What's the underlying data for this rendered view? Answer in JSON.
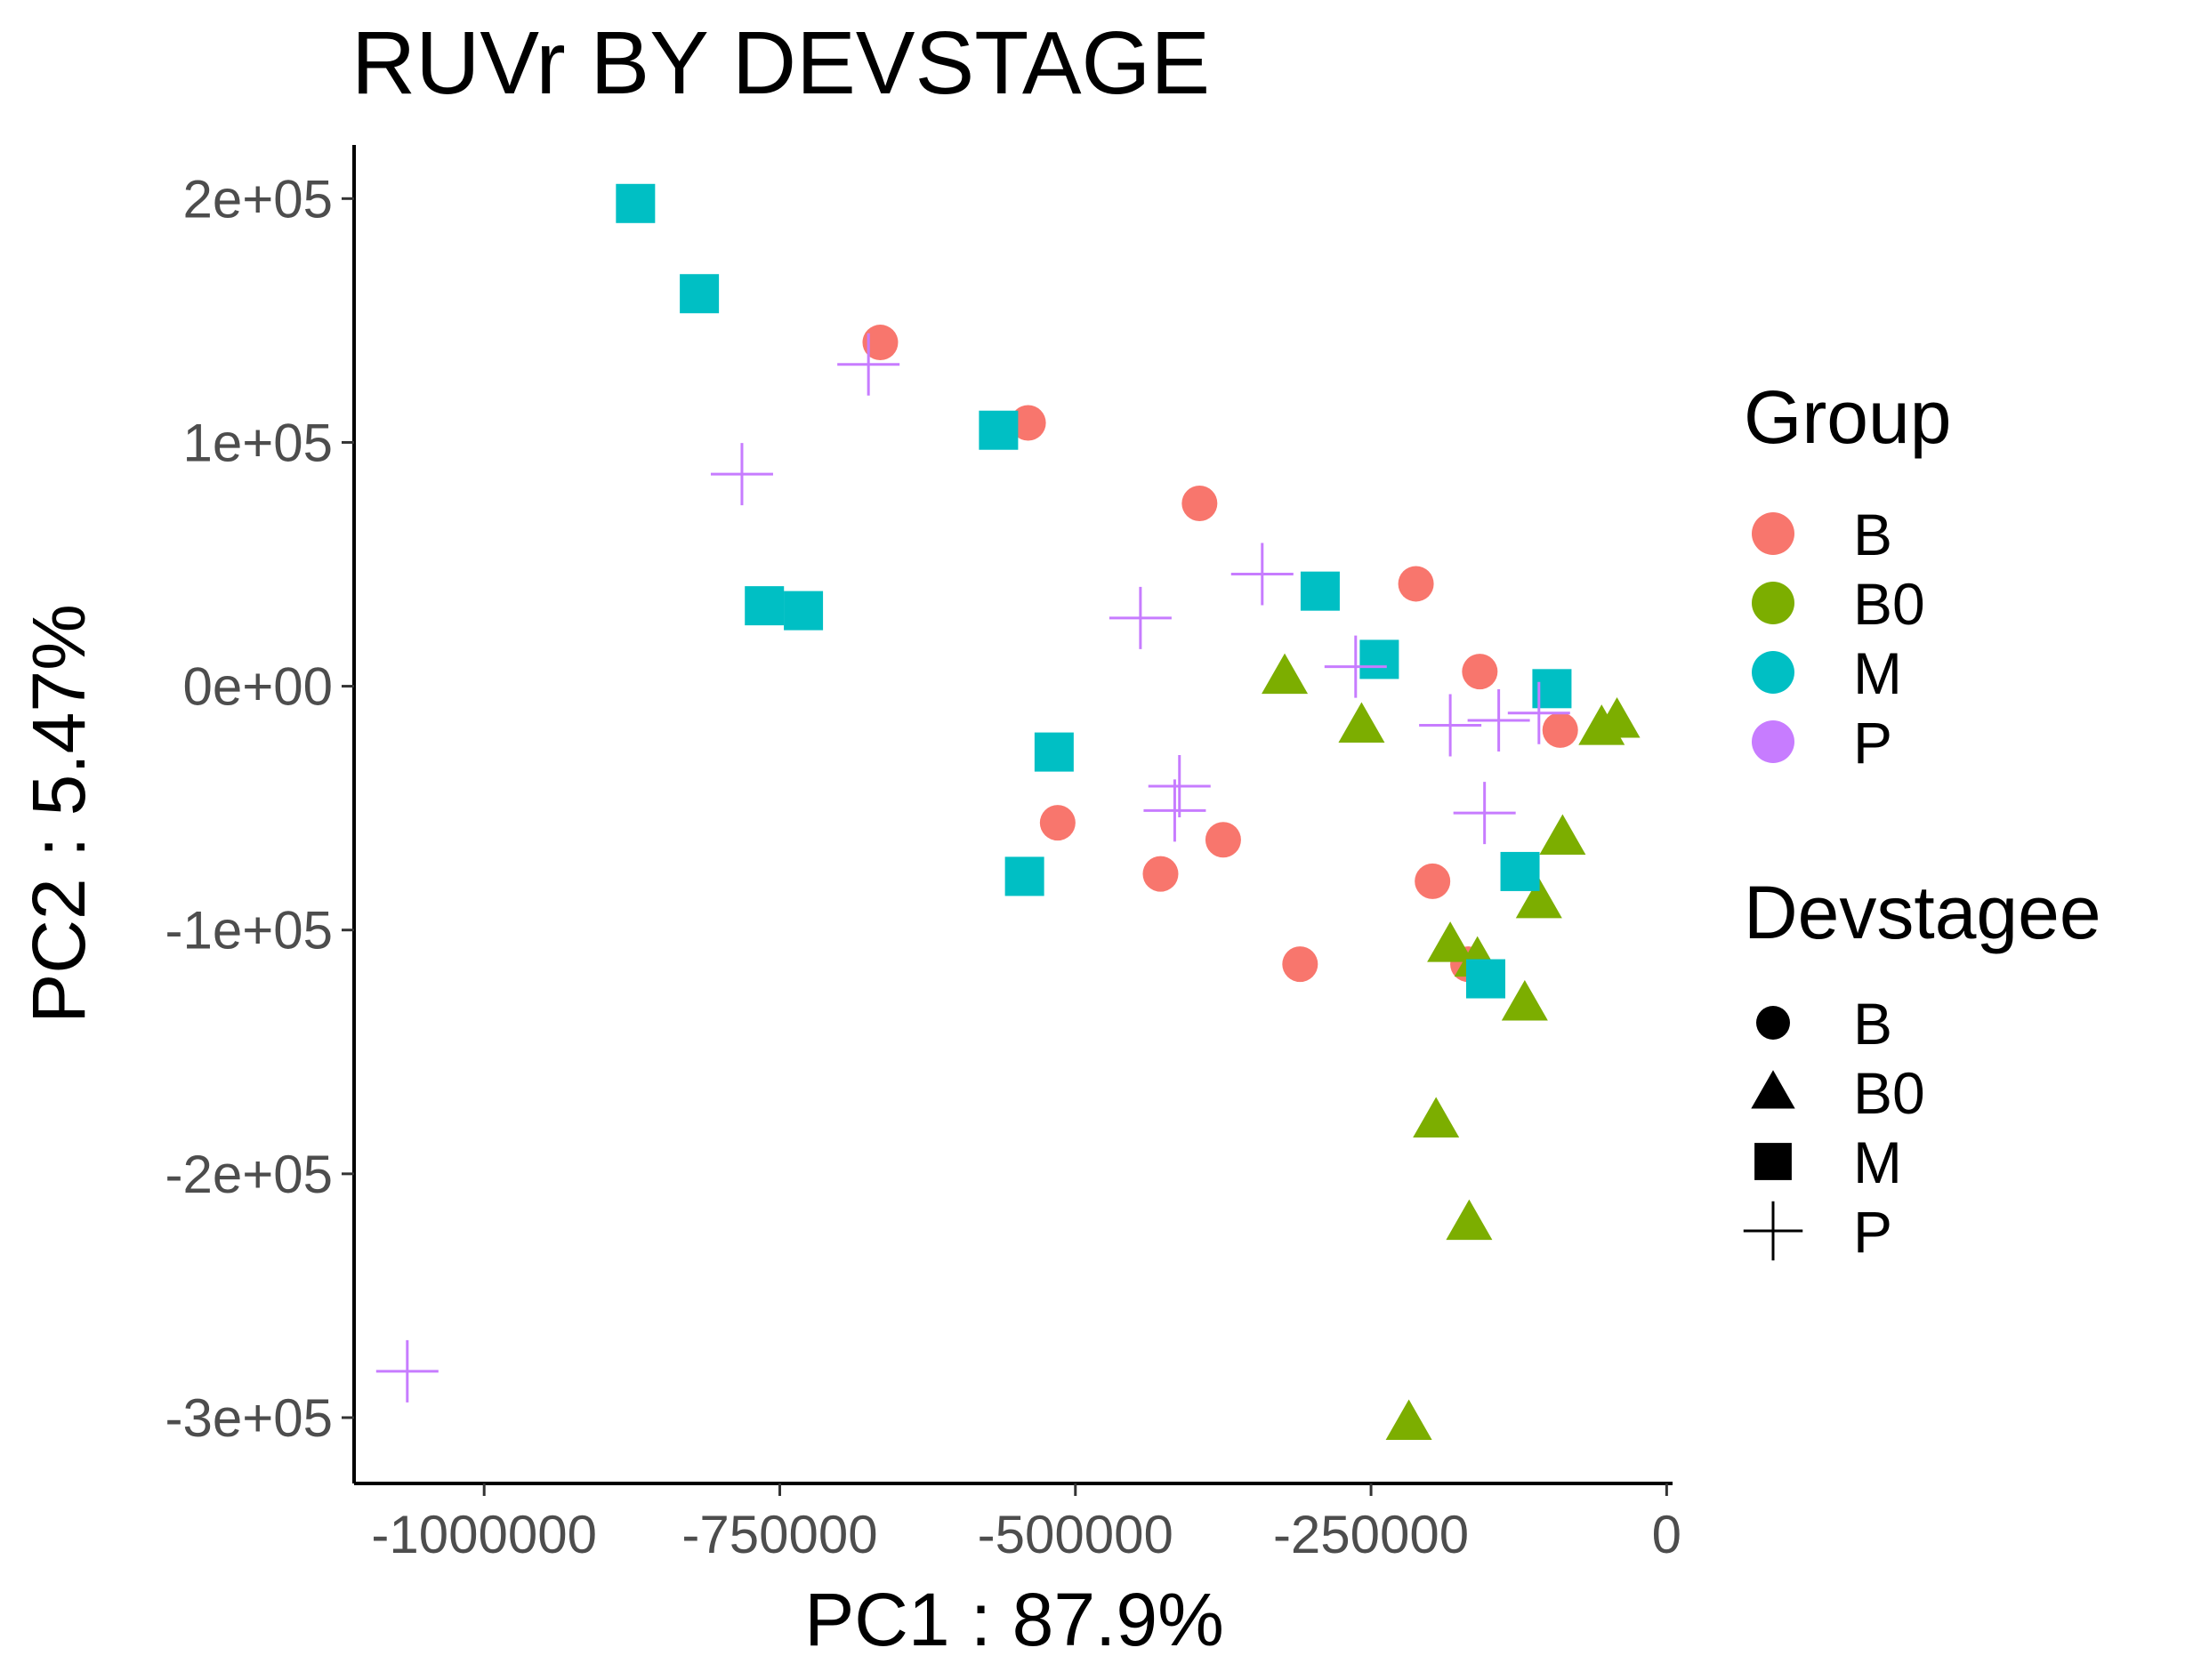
{
  "chart_data": {
    "type": "scatter",
    "title": "RUVr BY DEVSTAGE",
    "xlabel": "PC1 : 87.9%",
    "ylabel": "PC2 : 5.47%",
    "xlim": [
      -1110000,
      5000
    ],
    "ylim": [
      -327000,
      222000
    ],
    "xticks": [
      -1000000,
      -750000,
      -500000,
      -250000,
      0
    ],
    "xtick_labels": [
      "-1000000",
      "-750000",
      "-500000",
      "-250000",
      "0"
    ],
    "yticks": [
      200000,
      100000,
      0,
      -100000,
      -200000,
      -300000
    ],
    "ytick_labels": [
      "2e+05",
      "1e+05",
      "0e+00",
      "-1e+05",
      "-2e+05",
      "-3e+05"
    ],
    "grid": false,
    "legend_placement": "right",
    "colors": {
      "B": "#F8766D",
      "B0": "#7CAE00",
      "M": "#00BFC4",
      "P": "#C77CFF"
    },
    "legends": [
      {
        "title": "Group",
        "kind": "color",
        "items": [
          "B",
          "B0",
          "M",
          "P"
        ]
      },
      {
        "title": "Devstagee",
        "kind": "shape",
        "items": [
          {
            "label": "B",
            "shape": "circle"
          },
          {
            "label": "B0",
            "shape": "triangle"
          },
          {
            "label": "M",
            "shape": "square"
          },
          {
            "label": "P",
            "shape": "plus"
          }
        ]
      }
    ],
    "series": [
      {
        "name": "B",
        "shape": "circle",
        "points": [
          [
            -665000,
            141000
          ],
          [
            -540000,
            108000
          ],
          [
            -395000,
            75000
          ],
          [
            -212000,
            42000
          ],
          [
            -158000,
            6000
          ],
          [
            -90000,
            -18000
          ],
          [
            -515000,
            -56000
          ],
          [
            -375000,
            -63000
          ],
          [
            -428000,
            -77000
          ],
          [
            -198000,
            -80000
          ],
          [
            -310000,
            -114000
          ],
          [
            -168000,
            -114000
          ]
        ]
      },
      {
        "name": "B0",
        "shape": "triangle",
        "points": [
          [
            -323000,
            4000
          ],
          [
            -258000,
            -16000
          ],
          [
            -42000,
            -14000
          ],
          [
            -55000,
            -17000
          ],
          [
            -88000,
            -62000
          ],
          [
            -108000,
            -88000
          ],
          [
            -183000,
            -106000
          ],
          [
            -160000,
            -112000
          ],
          [
            -120000,
            -130000
          ],
          [
            -195000,
            -178000
          ],
          [
            -167000,
            -220000
          ],
          [
            -218000,
            -302000
          ]
        ]
      },
      {
        "name": "M",
        "shape": "square",
        "points": [
          [
            -872000,
            198000
          ],
          [
            -818000,
            161000
          ],
          [
            -565000,
            105000
          ],
          [
            -763000,
            33000
          ],
          [
            -730000,
            31000
          ],
          [
            -293000,
            39000
          ],
          [
            -243000,
            11000
          ],
          [
            -97000,
            -1000
          ],
          [
            -518000,
            -27000
          ],
          [
            -543000,
            -78000
          ],
          [
            -124000,
            -76000
          ],
          [
            -153000,
            -120000
          ]
        ]
      },
      {
        "name": "P",
        "shape": "plus",
        "points": [
          [
            -675000,
            132000
          ],
          [
            -782000,
            87000
          ],
          [
            -342000,
            46000
          ],
          [
            -445000,
            28000
          ],
          [
            -263000,
            8000
          ],
          [
            -183000,
            -16000
          ],
          [
            -142000,
            -14000
          ],
          [
            -108000,
            -11000
          ],
          [
            -412000,
            -41000
          ],
          [
            -416000,
            -51000
          ],
          [
            -154000,
            -52000
          ],
          [
            -1065000,
            -281000
          ]
        ]
      }
    ]
  }
}
